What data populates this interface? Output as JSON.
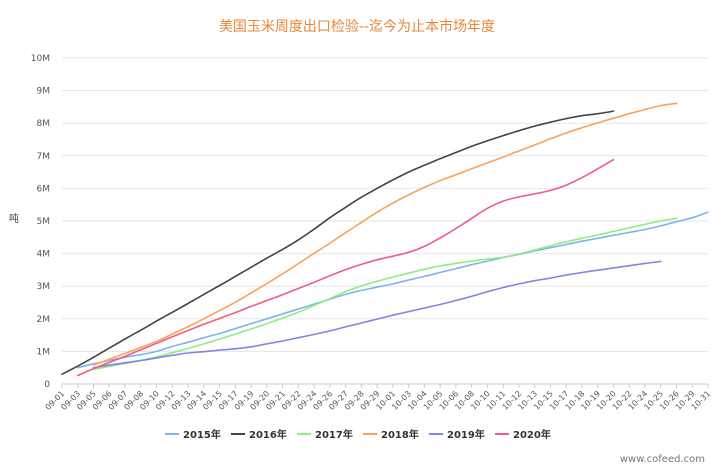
{
  "page": {
    "watermark": "www.cofeed.com"
  },
  "chart_data": {
    "type": "line",
    "title": "美国玉米周度出口检验--迄今为止本市场年度",
    "ylabel": "吨",
    "xlabel": "",
    "ylim": [
      0,
      10000000
    ],
    "yticks": [
      {
        "value": 0,
        "label": "0"
      },
      {
        "value": 1000000,
        "label": "1M"
      },
      {
        "value": 2000000,
        "label": "2M"
      },
      {
        "value": 3000000,
        "label": "3M"
      },
      {
        "value": 4000000,
        "label": "4M"
      },
      {
        "value": 5000000,
        "label": "5M"
      },
      {
        "value": 6000000,
        "label": "6M"
      },
      {
        "value": 7000000,
        "label": "7M"
      },
      {
        "value": 8000000,
        "label": "8M"
      },
      {
        "value": 9000000,
        "label": "9M"
      },
      {
        "value": 10000000,
        "label": "10M"
      }
    ],
    "categories": [
      "09-01",
      "09-03",
      "09-05",
      "09-06",
      "09-07",
      "09-08",
      "09-10",
      "09-12",
      "09-13",
      "09-14",
      "09-15",
      "09-17",
      "09-19",
      "09-20",
      "09-21",
      "09-22",
      "09-24",
      "09-26",
      "09-27",
      "09-28",
      "09-29",
      "10-01",
      "10-03",
      "10-04",
      "10-05",
      "10-06",
      "10-08",
      "10-10",
      "10-11",
      "10-12",
      "10-13",
      "10-15",
      "10-17",
      "10-18",
      "10-19",
      "10-20",
      "10-22",
      "10-24",
      "10-25",
      "10-26",
      "10-29",
      "10-31"
    ],
    "grid": true,
    "legend_position": "bottom",
    "series": [
      {
        "name": "2015年",
        "color": "#7cb5ec",
        "values": [
          null,
          500000,
          620000,
          720000,
          820000,
          900000,
          1000000,
          1150000,
          1280000,
          1420000,
          1550000,
          1700000,
          1850000,
          2000000,
          2150000,
          2300000,
          2450000,
          2600000,
          2750000,
          2870000,
          2970000,
          3070000,
          3190000,
          3300000,
          3420000,
          3540000,
          3660000,
          3770000,
          3880000,
          3980000,
          4080000,
          4180000,
          4280000,
          4380000,
          4470000,
          4560000,
          4650000,
          4740000,
          4850000,
          4980000,
          5100000,
          5270000
        ]
      },
      {
        "name": "2016年",
        "color": "#434348",
        "values": [
          300000,
          550000,
          820000,
          1100000,
          1380000,
          1650000,
          1930000,
          2200000,
          2470000,
          2750000,
          3020000,
          3300000,
          3580000,
          3860000,
          4130000,
          4420000,
          4750000,
          5100000,
          5420000,
          5730000,
          6000000,
          6260000,
          6500000,
          6710000,
          6910000,
          7100000,
          7290000,
          7460000,
          7620000,
          7770000,
          7910000,
          8030000,
          8140000,
          8230000,
          8290000,
          8370000,
          null,
          null,
          null,
          null,
          null,
          null
        ]
      },
      {
        "name": "2017年",
        "color": "#90ed7d",
        "values": [
          null,
          null,
          450000,
          540000,
          630000,
          720000,
          830000,
          960000,
          1090000,
          1230000,
          1380000,
          1530000,
          1690000,
          1850000,
          2020000,
          2200000,
          2410000,
          2620000,
          2830000,
          3010000,
          3150000,
          3280000,
          3400000,
          3520000,
          3620000,
          3700000,
          3770000,
          3830000,
          3890000,
          3990000,
          4110000,
          4240000,
          4360000,
          4470000,
          4570000,
          4680000,
          4790000,
          4900000,
          5000000,
          5080000,
          null,
          null
        ]
      },
      {
        "name": "2018年",
        "color": "#f7a35c",
        "values": [
          null,
          null,
          580000,
          760000,
          940000,
          1120000,
          1310000,
          1530000,
          1760000,
          2000000,
          2250000,
          2510000,
          2790000,
          3080000,
          3380000,
          3690000,
          4010000,
          4320000,
          4640000,
          4960000,
          5270000,
          5550000,
          5800000,
          6030000,
          6240000,
          6420000,
          6600000,
          6780000,
          6960000,
          7150000,
          7330000,
          7520000,
          7700000,
          7860000,
          8010000,
          8150000,
          8290000,
          8420000,
          8540000,
          8610000,
          null,
          null
        ]
      },
      {
        "name": "2019年",
        "color": "#8085e9",
        "values": [
          null,
          null,
          500000,
          580000,
          650000,
          720000,
          800000,
          880000,
          950000,
          990000,
          1040000,
          1080000,
          1140000,
          1230000,
          1320000,
          1420000,
          1520000,
          1630000,
          1750000,
          1870000,
          1990000,
          2110000,
          2220000,
          2330000,
          2440000,
          2560000,
          2690000,
          2830000,
          2960000,
          3070000,
          3170000,
          3250000,
          3340000,
          3420000,
          3490000,
          3560000,
          3630000,
          3700000,
          3760000,
          null,
          null,
          null
        ]
      },
      {
        "name": "2020年",
        "color": "#f15c80",
        "values": [
          null,
          260000,
          470000,
          660000,
          850000,
          1050000,
          1250000,
          1450000,
          1640000,
          1830000,
          2010000,
          2190000,
          2380000,
          2560000,
          2740000,
          2930000,
          3120000,
          3320000,
          3510000,
          3670000,
          3810000,
          3920000,
          4040000,
          4220000,
          4480000,
          4770000,
          5080000,
          5390000,
          5610000,
          5740000,
          5830000,
          5940000,
          6100000,
          6330000,
          6600000,
          6880000,
          null,
          null,
          null,
          null,
          null,
          null
        ]
      }
    ]
  }
}
